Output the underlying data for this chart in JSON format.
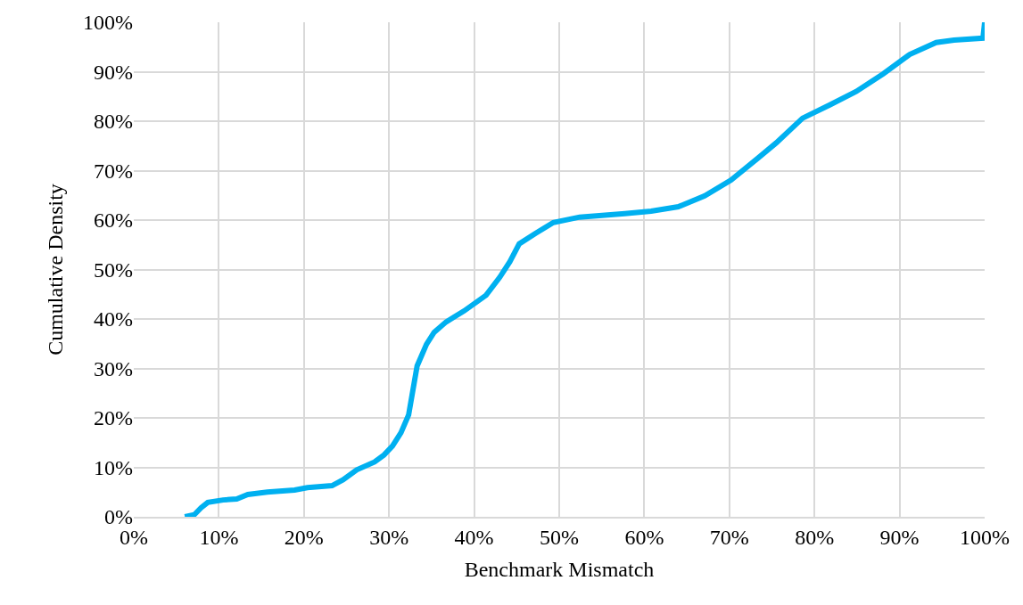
{
  "chart_data": {
    "type": "line",
    "xlabel": "Benchmark Mismatch",
    "ylabel": "Cumulative Density",
    "x": [
      6.0,
      7.1,
      7.9,
      8.7,
      10.5,
      12.1,
      13.4,
      15.7,
      18.9,
      20.4,
      23.3,
      24.6,
      26.2,
      28.3,
      29.4,
      30.4,
      31.4,
      32.3,
      33.3,
      34.4,
      35.3,
      36.7,
      38.8,
      41.4,
      43.0,
      44.2,
      45.3,
      47.2,
      49.3,
      52.4,
      57.7,
      60.8,
      64.0,
      67.1,
      70.2,
      73.4,
      75.5,
      78.6,
      81.8,
      84.9,
      88.1,
      91.2,
      94.3,
      96.4,
      99.8,
      100
    ],
    "series": [
      {
        "color": "#00b0f0",
        "values": [
          0,
          0.4,
          1.8,
          2.9,
          3.4,
          3.6,
          4.5,
          5.0,
          5.4,
          5.9,
          6.3,
          7.5,
          9.5,
          11.1,
          12.5,
          14.3,
          17.0,
          20.6,
          30.5,
          34.9,
          37.3,
          39.4,
          41.6,
          44.8,
          48.4,
          51.6,
          55.2,
          57.3,
          59.5,
          60.6,
          61.3,
          61.8,
          62.7,
          64.9,
          68.1,
          72.6,
          75.6,
          80.6,
          83.3,
          86.0,
          89.6,
          93.5,
          95.9,
          96.4,
          96.8,
          100
        ]
      }
    ],
    "xlim": [
      0,
      100
    ],
    "ylim": [
      0,
      100
    ],
    "xticks": [
      {
        "value": 0,
        "label": "0%"
      },
      {
        "value": 10,
        "label": "10%"
      },
      {
        "value": 20,
        "label": "20%"
      },
      {
        "value": 30,
        "label": "30%"
      },
      {
        "value": 40,
        "label": "40%"
      },
      {
        "value": 50,
        "label": "50%"
      },
      {
        "value": 60,
        "label": "60%"
      },
      {
        "value": 70,
        "label": "70%"
      },
      {
        "value": 80,
        "label": "80%"
      },
      {
        "value": 90,
        "label": "90%"
      },
      {
        "value": 100,
        "label": "100%"
      }
    ],
    "yticks": [
      {
        "value": 0,
        "label": "0%"
      },
      {
        "value": 10,
        "label": "10%"
      },
      {
        "value": 20,
        "label": "20%"
      },
      {
        "value": 30,
        "label": "30%"
      },
      {
        "value": 40,
        "label": "40%"
      },
      {
        "value": 50,
        "label": "50%"
      },
      {
        "value": 60,
        "label": "60%"
      },
      {
        "value": 70,
        "label": "70%"
      },
      {
        "value": 80,
        "label": "80%"
      },
      {
        "value": 90,
        "label": "90%"
      },
      {
        "value": 100,
        "label": "100%"
      }
    ],
    "grid": true,
    "marker": "none",
    "line_style": "solid"
  }
}
